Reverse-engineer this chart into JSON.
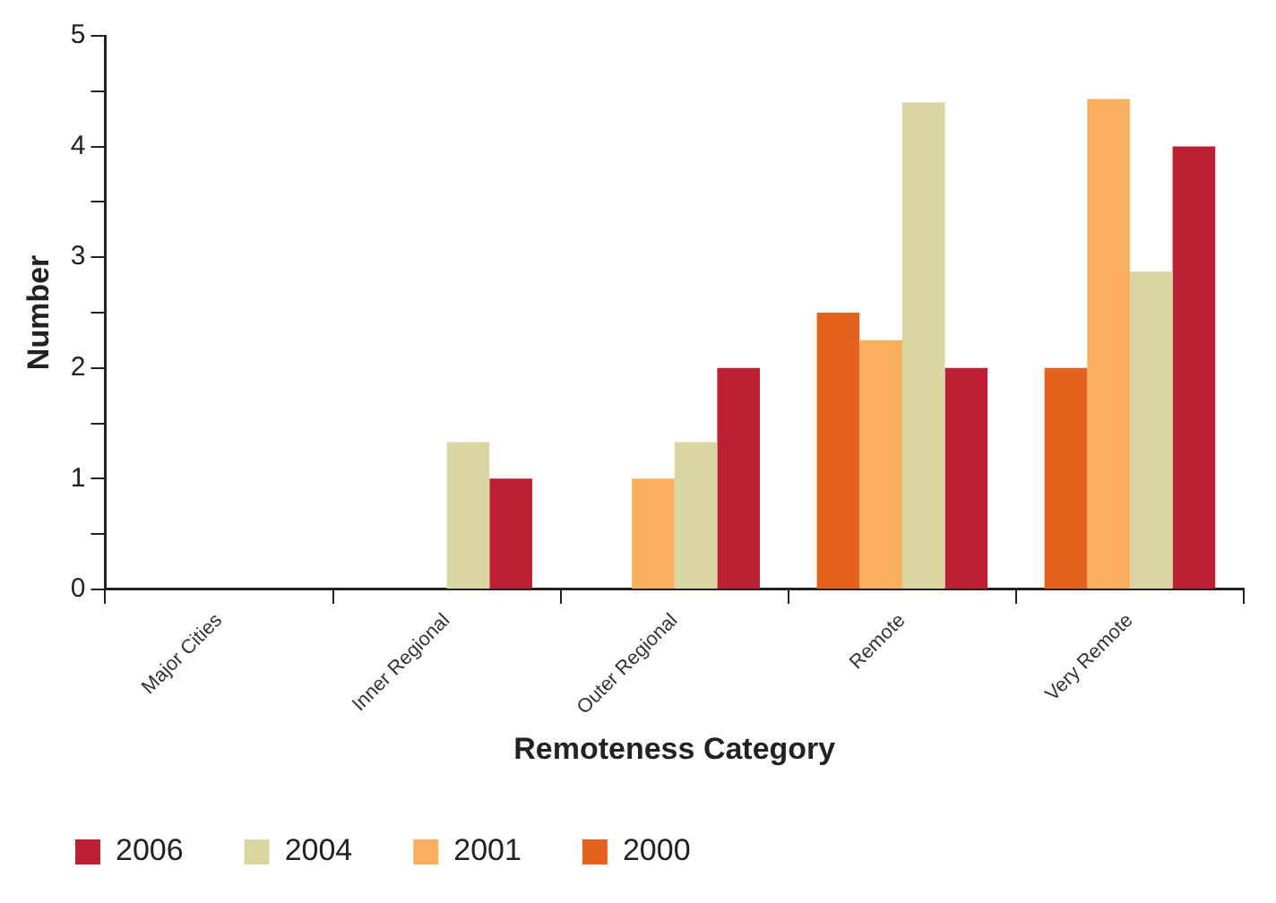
{
  "chart_data": {
    "type": "bar",
    "xlabel": "Remoteness Category",
    "ylabel": "Number",
    "categories": [
      "Major Cities",
      "Inner Regional",
      "Outer Regional",
      "Remote",
      "Very Remote"
    ],
    "series": [
      {
        "name": "2000",
        "color": "#e2621e",
        "values": [
          0,
          0,
          0,
          2.5,
          2
        ]
      },
      {
        "name": "2001",
        "color": "#faaf5f",
        "values": [
          0,
          0,
          1,
          2.25,
          4.43
        ]
      },
      {
        "name": "2004",
        "color": "#dad6a4",
        "values": [
          0,
          1.33,
          1.33,
          4.4,
          2.87
        ]
      },
      {
        "name": "2006",
        "color": "#bd1f35",
        "values": [
          0,
          1,
          2,
          2,
          4
        ]
      }
    ],
    "ylim": [
      0,
      5
    ],
    "yticks": [
      0,
      {
        "value": 0.5,
        "label": null
      },
      1,
      {
        "value": 1.5,
        "label": null
      },
      2,
      {
        "value": 2.5,
        "label": null
      },
      3,
      {
        "value": 3.5,
        "label": null
      },
      4,
      {
        "value": 4.5,
        "label": null
      },
      5
    ],
    "grid": false,
    "legend": "bottom"
  }
}
